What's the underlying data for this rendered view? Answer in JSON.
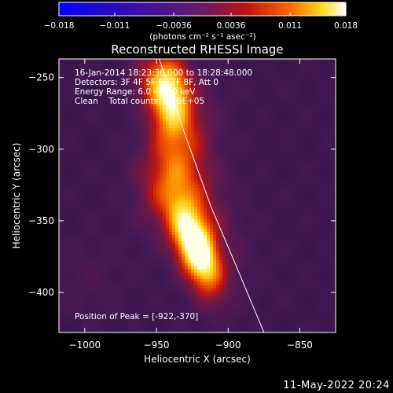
{
  "chart_data": {
    "type": "heatmap",
    "title": "Reconstructed RHESSI Image",
    "xlabel": "Heliocentric X (arcsec)",
    "ylabel": "Heliocentric Y (arcsec)",
    "xlim": [
      -1018,
      -825
    ],
    "ylim": [
      -428,
      -237
    ],
    "x_ticks": [
      -1000,
      -950,
      -900,
      -850
    ],
    "y_ticks": [
      -250,
      -300,
      -350,
      -400
    ],
    "x_tick_labels": [
      "−1000",
      "−950",
      "−900",
      "−850"
    ],
    "y_tick_labels": [
      "−250",
      "−300",
      "−350",
      "−400"
    ],
    "colorbar": {
      "min": -0.018,
      "max": 0.018,
      "tick_values": [
        -0.018,
        -0.011,
        -0.0036,
        0.0036,
        0.011,
        0.018
      ],
      "tick_labels": [
        "−0.018",
        "−0.011",
        "−0.0036",
        "0.0036",
        "0.011",
        "0.018"
      ],
      "units": "(photons cm⁻² s⁻¹ asec⁻²)",
      "colormap": "blue-purple-red-yellow-white"
    },
    "sources": [
      {
        "x": -922,
        "y": -370,
        "peak": 0.018
      },
      {
        "x": -940,
        "y": -265,
        "peak": 0.011
      }
    ],
    "limb_curve": [
      [
        -948,
        -237
      ],
      [
        -930,
        -290
      ],
      [
        -912,
        -340
      ],
      [
        -895,
        -380
      ],
      [
        -875,
        -428
      ]
    ],
    "annotations": {
      "line1": "16-Jan-2014 18:23:36.000 to 18:28:48.000",
      "line2": "Detectors: 3F 4F 5F 6F 7F 8F, Att 0",
      "line3": "Energy Range: 6.0 - 12.0 keV",
      "line4": "Clean    Total counts: 1.26E+05",
      "peak": "Position of Peak = [-922,-370]"
    }
  },
  "datestamp": "11-May-2022 20:24",
  "colors": {
    "background": "#000000",
    "text": "#ffffff",
    "colormap_stops": [
      "#0000ff",
      "#3a1a90",
      "#6a1a7a",
      "#c01010",
      "#ff5a00",
      "#ffd000",
      "#ffffff"
    ]
  }
}
